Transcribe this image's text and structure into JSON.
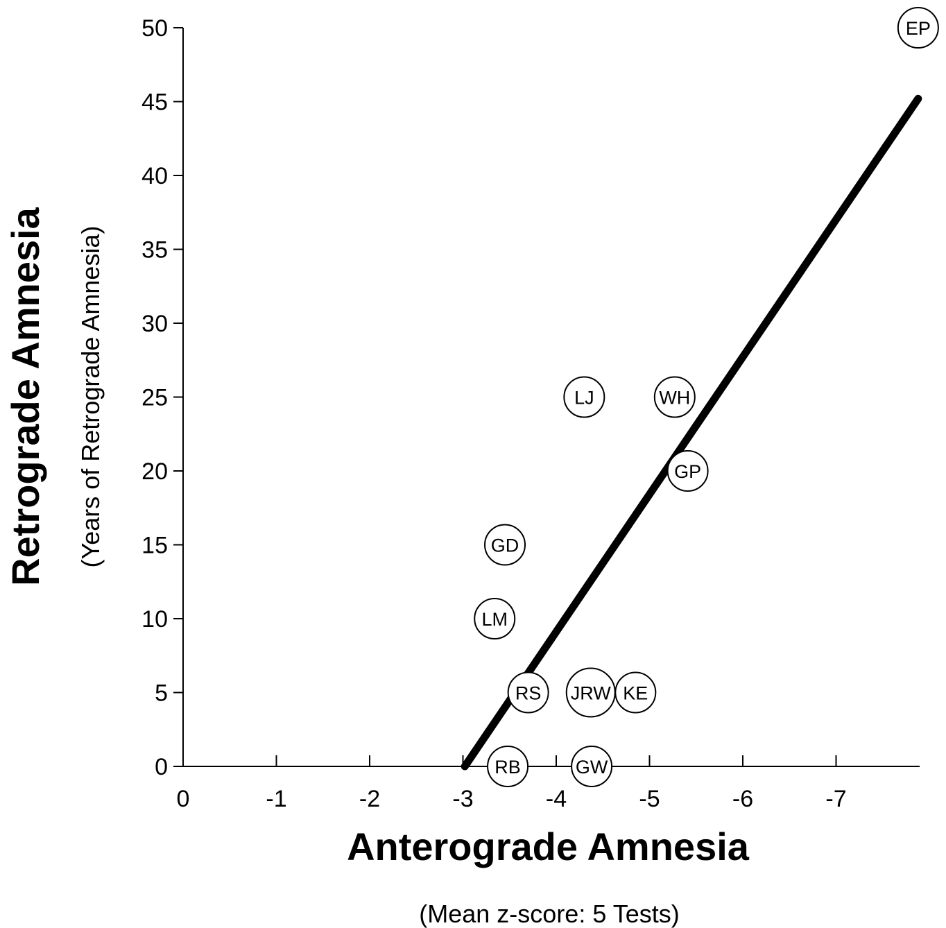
{
  "chart_data": {
    "type": "scatter",
    "xlabel": "Anterograde Amnesia",
    "xlabel_sub": "(Mean z-score: 5 Tests)",
    "ylabel": "Retrograde Amnesia",
    "ylabel_sub": "(Years of Retrograde Amnesia)",
    "xlim": [
      0,
      -7.9
    ],
    "ylim": [
      0,
      50
    ],
    "x_ticks": [
      0,
      -1,
      -2,
      -3,
      -4,
      -5,
      -6,
      -7
    ],
    "x_tick_labels": [
      "0",
      "-1",
      "-2",
      "-3",
      "-4",
      "-5",
      "-6",
      "-7"
    ],
    "y_ticks": [
      0,
      5,
      10,
      15,
      20,
      25,
      30,
      35,
      40,
      45,
      50
    ],
    "y_tick_labels": [
      "0",
      "5",
      "10",
      "15",
      "20",
      "25",
      "30",
      "35",
      "40",
      "45",
      "50"
    ],
    "grid": false,
    "points": [
      {
        "label": "EP",
        "x": -7.88,
        "y": 50
      },
      {
        "label": "LJ",
        "x": -4.3,
        "y": 25
      },
      {
        "label": "WH",
        "x": -5.27,
        "y": 25
      },
      {
        "label": "GP",
        "x": -5.41,
        "y": 20
      },
      {
        "label": "GD",
        "x": -3.45,
        "y": 15
      },
      {
        "label": "LM",
        "x": -3.34,
        "y": 10
      },
      {
        "label": "RS",
        "x": -3.7,
        "y": 5
      },
      {
        "label": "JRW",
        "x": -4.37,
        "y": 5
      },
      {
        "label": "KE",
        "x": -4.85,
        "y": 5
      },
      {
        "label": "RB",
        "x": -3.48,
        "y": 0
      },
      {
        "label": "GW",
        "x": -4.38,
        "y": 0
      }
    ],
    "regression_line": {
      "x": [
        -3.02,
        -7.88
      ],
      "y": [
        0,
        45.2
      ]
    }
  }
}
